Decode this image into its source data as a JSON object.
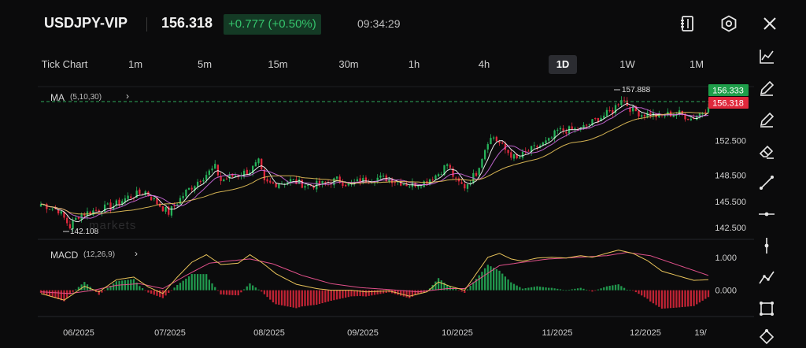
{
  "header": {
    "symbol": "USDJPY-VIP",
    "price": "156.318",
    "change": "+0.777 (+0.50%)",
    "time": "09:34:29",
    "icons": [
      "notebook-icon",
      "settings-icon",
      "close-icon"
    ]
  },
  "timeframes": [
    "Tick Chart",
    "1m",
    "5m",
    "15m",
    "30m",
    "1h",
    "4h",
    "1D",
    "1W",
    "1M"
  ],
  "active_timeframe": "1D",
  "indicators": {
    "ma_label": "MA",
    "ma_params": "(5,10,30)",
    "macd_label": "MACD",
    "macd_params": "(12,26,9)"
  },
  "price_tags": {
    "ask": "156.333",
    "bid": "156.318",
    "ask_color": "#1e9e4a",
    "bid_color": "#e0283c"
  },
  "annotations": {
    "high": "157.888",
    "low": "142.108"
  },
  "watermark": "markets",
  "colors": {
    "up": "#26b35a",
    "down": "#e0283c",
    "ma5": "#ffffff",
    "ma10": "#d06be0",
    "ma30": "#e8c35a",
    "dif": "#e8c35a",
    "dea": "#e0508a"
  },
  "tools": [
    "line-chart-icon",
    "pencil-icon",
    "pencil-icon",
    "eraser-icon",
    "trend-line-icon",
    "horizontal-line-icon",
    "vertical-line-icon",
    "polyline-icon",
    "rectangle-icon",
    "shape-icon"
  ],
  "chart_data": [
    {
      "type": "candlestick",
      "title": "USDJPY-VIP 1D",
      "x_labels": [
        "06/2025",
        "07/2025",
        "08/2025",
        "09/2025",
        "10/2025",
        "11/2025",
        "12/2025",
        "19/"
      ],
      "y_ticks": [
        142.5,
        145.5,
        148.5,
        152.5
      ],
      "ylim": [
        141.5,
        158.5
      ],
      "anchors": [
        [
          0,
          145.2
        ],
        [
          6,
          144.5
        ],
        [
          10,
          142.6
        ],
        [
          13,
          143.9
        ],
        [
          18,
          144.4
        ],
        [
          25,
          145.0
        ],
        [
          30,
          146.0
        ],
        [
          36,
          146.6
        ],
        [
          40,
          145.3
        ],
        [
          44,
          144.2
        ],
        [
          50,
          146.6
        ],
        [
          55,
          148.1
        ],
        [
          60,
          149.4
        ],
        [
          62,
          147.9
        ],
        [
          67,
          148.5
        ],
        [
          72,
          149.0
        ],
        [
          75,
          150.0
        ],
        [
          77,
          147.6
        ],
        [
          80,
          147.5
        ],
        [
          86,
          147.9
        ],
        [
          92,
          147.3
        ],
        [
          97,
          147.5
        ],
        [
          102,
          148.0
        ],
        [
          106,
          147.4
        ],
        [
          110,
          147.8
        ],
        [
          115,
          148.2
        ],
        [
          120,
          148.1
        ],
        [
          127,
          147.4
        ],
        [
          132,
          147.7
        ],
        [
          137,
          148.7
        ],
        [
          140,
          149.8
        ],
        [
          143,
          147.8
        ],
        [
          146,
          147.2
        ],
        [
          150,
          148.8
        ],
        [
          154,
          152.5
        ],
        [
          156,
          152.9
        ],
        [
          160,
          151.4
        ],
        [
          164,
          150.3
        ],
        [
          167,
          151.1
        ],
        [
          170,
          151.6
        ],
        [
          175,
          152.4
        ],
        [
          178,
          153.6
        ],
        [
          182,
          153.7
        ],
        [
          186,
          153.8
        ],
        [
          190,
          154.6
        ],
        [
          193,
          155.2
        ],
        [
          197,
          155.9
        ],
        [
          200,
          157.4
        ],
        [
          203,
          156.2
        ],
        [
          207,
          155.5
        ],
        [
          210,
          155.6
        ],
        [
          213,
          155.2
        ],
        [
          216,
          155.5
        ],
        [
          220,
          155.6
        ],
        [
          224,
          155.0
        ],
        [
          228,
          155.8
        ],
        [
          230,
          156.318
        ]
      ],
      "ma_periods": [
        5,
        10,
        30
      ],
      "current_price": 156.318
    },
    {
      "type": "macd",
      "y_ticks": [
        0.0,
        1.0
      ],
      "ylim": [
        -0.75,
        1.45
      ],
      "dif_anchors": [
        [
          0,
          -0.1
        ],
        [
          8,
          -0.3
        ],
        [
          15,
          0.12
        ],
        [
          20,
          -0.05
        ],
        [
          26,
          0.32
        ],
        [
          32,
          0.4
        ],
        [
          37,
          0.1
        ],
        [
          42,
          -0.1
        ],
        [
          47,
          0.4
        ],
        [
          52,
          0.85
        ],
        [
          57,
          1.08
        ],
        [
          62,
          0.78
        ],
        [
          68,
          0.82
        ],
        [
          72,
          1.08
        ],
        [
          76,
          0.85
        ],
        [
          81,
          0.5
        ],
        [
          88,
          0.18
        ],
        [
          95,
          0.05
        ],
        [
          100,
          0.0
        ],
        [
          107,
          0.0
        ],
        [
          112,
          -0.05
        ],
        [
          120,
          -0.02
        ],
        [
          127,
          -0.18
        ],
        [
          133,
          -0.05
        ],
        [
          137,
          0.25
        ],
        [
          141,
          0.12
        ],
        [
          146,
          0.0
        ],
        [
          150,
          0.5
        ],
        [
          154,
          1.0
        ],
        [
          158,
          1.12
        ],
        [
          162,
          0.95
        ],
        [
          166,
          0.88
        ],
        [
          171,
          0.98
        ],
        [
          176,
          1.0
        ],
        [
          181,
          0.98
        ],
        [
          186,
          1.05
        ],
        [
          190,
          1.0
        ],
        [
          194,
          1.1
        ],
        [
          199,
          1.22
        ],
        [
          204,
          1.12
        ],
        [
          209,
          0.9
        ],
        [
          214,
          0.58
        ],
        [
          219,
          0.45
        ],
        [
          225,
          0.3
        ],
        [
          230,
          0.32
        ]
      ],
      "dea_anchors": [
        [
          0,
          -0.05
        ],
        [
          10,
          -0.1
        ],
        [
          18,
          0.0
        ],
        [
          26,
          0.15
        ],
        [
          34,
          0.2
        ],
        [
          42,
          0.05
        ],
        [
          50,
          0.45
        ],
        [
          58,
          0.82
        ],
        [
          66,
          0.9
        ],
        [
          72,
          0.95
        ],
        [
          80,
          0.8
        ],
        [
          90,
          0.45
        ],
        [
          100,
          0.2
        ],
        [
          110,
          0.08
        ],
        [
          120,
          0.02
        ],
        [
          130,
          -0.05
        ],
        [
          140,
          0.05
        ],
        [
          146,
          0.05
        ],
        [
          152,
          0.4
        ],
        [
          158,
          0.75
        ],
        [
          166,
          0.85
        ],
        [
          175,
          0.95
        ],
        [
          185,
          1.0
        ],
        [
          195,
          1.05
        ],
        [
          202,
          1.15
        ],
        [
          210,
          1.05
        ],
        [
          220,
          0.75
        ],
        [
          230,
          0.45
        ]
      ]
    }
  ]
}
